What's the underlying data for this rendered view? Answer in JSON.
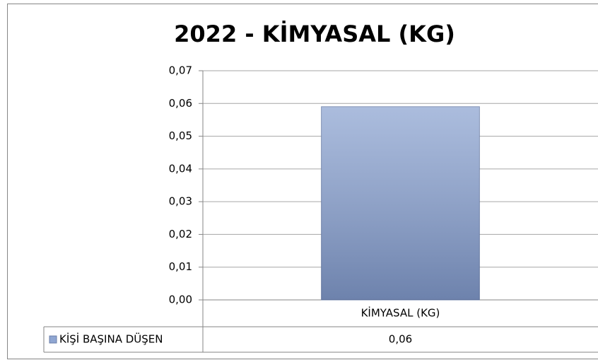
{
  "chart_data": {
    "type": "bar",
    "title": "2022 - KİMYASAL (KG)",
    "categories": [
      "KİMYASAL (KG)"
    ],
    "series": [
      {
        "name": "KİŞİ BAŞINA DÜŞEN",
        "color": "#8fa6d2",
        "values": [
          0.059
        ],
        "value_labels": [
          "0,06"
        ]
      }
    ],
    "ylim": [
      0,
      0.07
    ],
    "yticks": [
      {
        "value": 0,
        "label": "0,00"
      },
      {
        "value": 0.01,
        "label": "0,01"
      },
      {
        "value": 0.02,
        "label": "0,02"
      },
      {
        "value": 0.03,
        "label": "0,03"
      },
      {
        "value": 0.04,
        "label": "0,04"
      },
      {
        "value": 0.05,
        "label": "0,05"
      },
      {
        "value": 0.06,
        "label": "0,06"
      },
      {
        "value": 0.07,
        "label": "0,07"
      }
    ],
    "grid": true
  }
}
